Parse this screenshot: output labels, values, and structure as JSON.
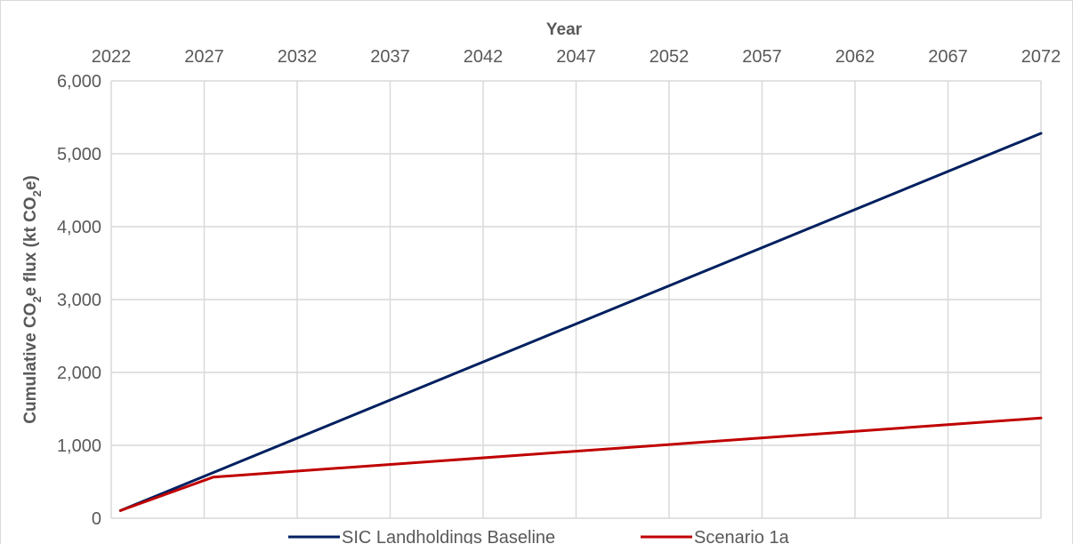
{
  "chart_data": {
    "type": "line",
    "xlabel": "Year",
    "ylabel": "Cumulative CO₂e flux (kt CO₂e)",
    "ylabel_parts": {
      "part1": "Cumulative CO",
      "sub1": "2",
      "part2": "e flux (kt CO",
      "sub2": "2",
      "part3": "e)"
    },
    "xlim": [
      2022,
      2072
    ],
    "ylim": [
      0,
      6000
    ],
    "x_ticks": [
      2022,
      2027,
      2032,
      2037,
      2042,
      2047,
      2052,
      2057,
      2062,
      2067,
      2072
    ],
    "x_tick_labels": [
      "2022",
      "2027",
      "2032",
      "2037",
      "2042",
      "2047",
      "2052",
      "2057",
      "2062",
      "2067",
      "2072"
    ],
    "y_ticks": [
      0,
      1000,
      2000,
      3000,
      4000,
      5000,
      6000
    ],
    "y_tick_labels": [
      "0",
      "1,000",
      "2,000",
      "3,000",
      "4,000",
      "5,000",
      "6,000"
    ],
    "x_axis_position": "top",
    "grid": true,
    "legend_position": "bottom",
    "series": [
      {
        "name": "SIC Landholdings Baseline",
        "color": "#002060",
        "x": [
          2022.5,
          2072
        ],
        "y": [
          105,
          5280
        ]
      },
      {
        "name": "Scenario 1a",
        "color": "#C00000",
        "x": [
          2022.5,
          2027.5,
          2072
        ],
        "y": [
          105,
          565,
          1375
        ]
      }
    ]
  }
}
